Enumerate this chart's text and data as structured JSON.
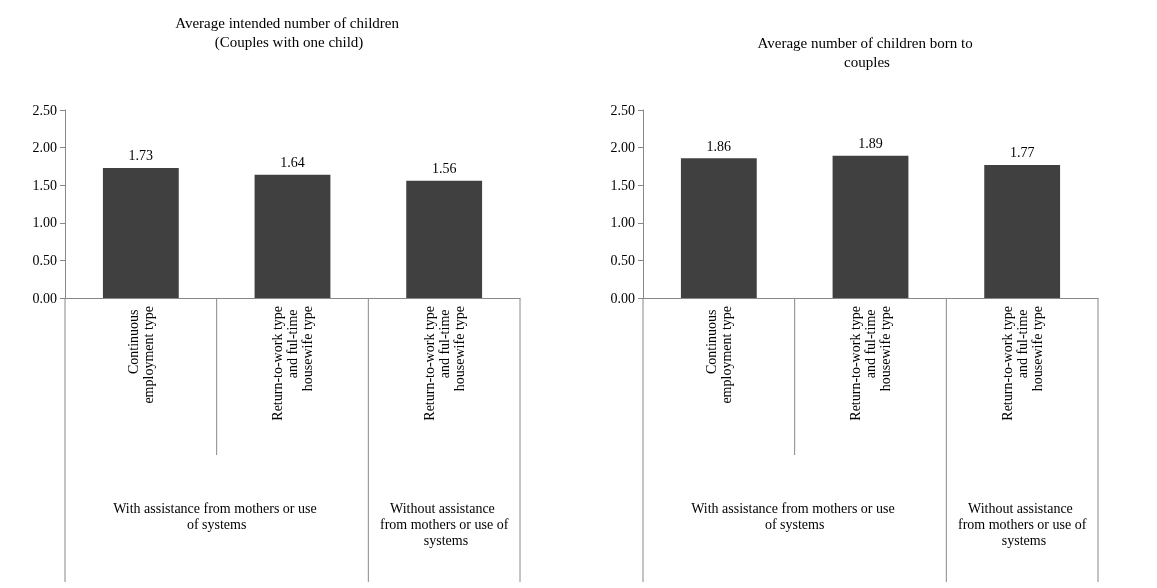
{
  "chart_data": [
    {
      "type": "bar",
      "title": "Average intended number of children (Couples with one child)",
      "categories": [
        "Continuous employment type",
        "Return-to-work type and ful-time housewife type",
        "Return-to-work type and ful-time housewife type"
      ],
      "values": [
        1.73,
        1.64,
        1.56
      ],
      "color": "#404040",
      "data_labels": true,
      "ylim": [
        0,
        2.5
      ],
      "yticks": [
        {
          "value": 0,
          "label": "0.00"
        },
        {
          "value": 0.5,
          "label": "0.50"
        },
        {
          "value": 1,
          "label": "1.00"
        },
        {
          "value": 1.5,
          "label": "1.50"
        },
        {
          "value": 2,
          "label": "2.00"
        },
        {
          "value": 2.5,
          "label": "2.50"
        }
      ],
      "annotations": [
        "With assistance from mothers or use of systems",
        "Without assistance from mothers or use of systems"
      ]
    },
    {
      "type": "bar",
      "title": "Average number of children born to couples",
      "categories": [
        "Continuous employment type",
        "Return-to-work type and ful-time housewife type",
        "Return-to-work type and ful-time housewife type"
      ],
      "values": [
        1.86,
        1.89,
        1.77
      ],
      "color": "#404040",
      "data_labels": true,
      "ylim": [
        0,
        2.5
      ],
      "yticks": [
        {
          "value": 0,
          "label": "0.00"
        },
        {
          "value": 0.5,
          "label": "0.50"
        },
        {
          "value": 1,
          "label": "1.00"
        },
        {
          "value": 1.5,
          "label": "1.50"
        },
        {
          "value": 2,
          "label": "2.00"
        },
        {
          "value": 2.5,
          "label": "2.50"
        }
      ],
      "annotations": [
        "With assistance from mothers or use of systems",
        "Without assistance from mothers or use of systems"
      ]
    }
  ]
}
